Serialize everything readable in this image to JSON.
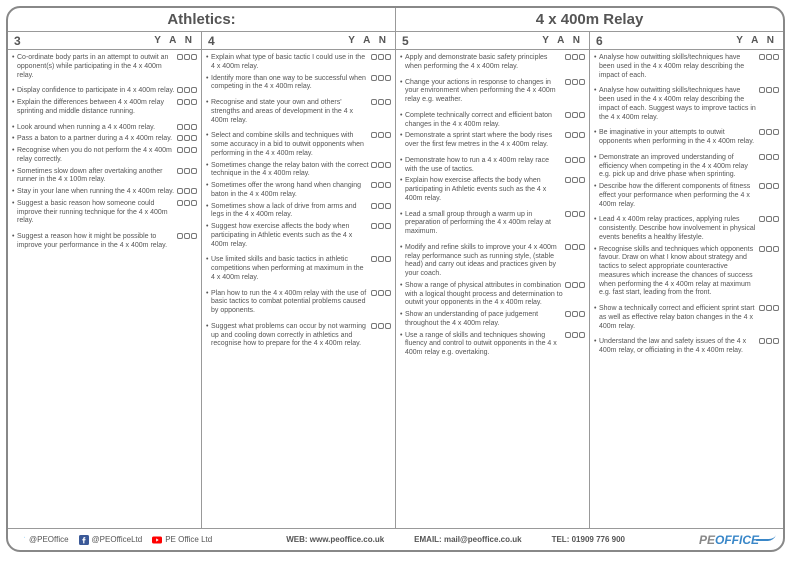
{
  "header": {
    "left": "Athletics:",
    "right": "4 x 400m Relay"
  },
  "yan_label": "Y A N",
  "columns": [
    {
      "level": "3",
      "groups": [
        [
          "Co-ordinate body parts in an attempt to outwit an opponent(s) while participating in the 4 x 400m relay."
        ],
        [
          "Display confidence to participate in 4 x 400m relay.",
          "Explain the differences between 4 x 400m relay sprinting and middle distance running."
        ],
        [
          "Look around when running a 4 x 400m relay.",
          "Pass a baton to a partner during a 4 x 400m relay.",
          "Recognise when you do not perform the 4 x 400m relay correctly.",
          "Sometimes slow down after overtaking another runner in the 4 x 100m relay.",
          "Stay in your lane when running the 4 x 400m relay.",
          "Suggest a basic reason how someone could improve their running technique for the 4 x 400m relay."
        ],
        [
          "Suggest a reason how it might be possible to improve your performance in the 4 x 400m relay."
        ]
      ]
    },
    {
      "level": "4",
      "groups": [
        [
          "Explain what type of basic tactic I could use in the 4 x 400m relay.",
          "Identify more than one way to be successful when competing in the 4 x 400m relay."
        ],
        [
          "Recognise and state your own and others' strengths and areas of development in the 4 x 400m relay."
        ],
        [
          "Select and combine skills and techniques with some accuracy in a bid to outwit opponents when performing in the 4 x 400m relay.",
          "Sometimes change the relay baton with the correct technique in the 4 x 400m relay.",
          "Sometimes offer the wrong hand when changing baton in the 4 x 400m relay.",
          "Sometimes show a lack of drive from arms and legs in the 4 x 400m relay.",
          "Suggest how exercise affects the body when participating in Athletic events such as the 4 x 400m relay."
        ],
        [
          "Use limited skills and basic tactics in athletic competitions when performing at maximum in the 4 x 400m relay."
        ],
        [
          "Plan how to run the 4 x 400m relay with the use of basic tactics to combat potential problems caused by opponents."
        ],
        [
          "Suggest what problems can occur by not warming up and cooling down correctly in athletics and recognise how to prepare for the 4 x 400m relay."
        ]
      ]
    },
    {
      "level": "5",
      "groups": [
        [
          "Apply and demonstrate basic safety principles when performing the 4 x 400m relay."
        ],
        [
          "Change your actions in response to changes in your environment when performing the 4 x 400m relay e.g. weather."
        ],
        [
          "Complete technically correct and efficient baton changes in the 4 x 400m relay.",
          "Demonstrate a sprint start where the body rises over the first few metres in the 4 x 400m relay."
        ],
        [
          "Demonstrate how to run a 4 x 400m relay race with the use of tactics.",
          "Explain how exercise affects the body when participating in Athletic events such as the 4 x 400m relay."
        ],
        [
          "Lead a small group through a warm up in preparation of performing the 4 x 400m relay at maximum."
        ],
        [
          "Modify and refine skills to improve your 4 x 400m relay performance such as running style, (stable head) and carry out ideas and practices given by your coach.",
          "Show a range of physical attributes in combination with a logical thought process and determination to outwit your opponents in the 4 x 400m relay.",
          "Show an understanding of pace judgement throughout the 4 x 400m relay.",
          "Use a range of skills and techniques showing fluency and control to outwit opponents in the 4 x 400m relay e.g. overtaking."
        ]
      ]
    },
    {
      "level": "6",
      "groups": [
        [
          "Analyse how outwitting skills/techniques have been used in the 4 x 400m relay describing the impact of each."
        ],
        [
          "Analyse how outwitting skills/techniques have been used in the 4 x 400m relay describing the impact of each. Suggest ways to improve tactics in the 4 x 400m relay."
        ],
        [
          "Be imaginative in your attempts to outwit opponents when performing in the 4 x 400m relay."
        ],
        [
          "Demonstrate an improved understanding of efficiency when competing in the 4 x 400m relay e.g. pick up and drive phase when sprinting.",
          "Describe how the different components of fitness effect your performance when performing the 4 x 400m relay."
        ],
        [
          "Lead 4 x 400m relay practices, applying rules consistently. Describe how involvement in physical events benefits a healthy lifestyle.",
          "Recognise skills and techniques which opponents favour. Draw on what I know about strategy and tactics to select appropriate counteractive measures which increase the chances of success when performing the 4 x 400m relay at maximum e.g. fast start, leading from the front."
        ],
        [
          "Show a technically correct and efficient sprint start as well as effective relay baton changes in the 4 x 400m relay."
        ],
        [
          "Understand the law and safety issues of the 4 x 400m relay, or officiating in the 4 x 400m relay."
        ]
      ]
    }
  ],
  "footer": {
    "twitter": "@PEOffice",
    "facebook": "@PEOfficeLtd",
    "youtube": "PE Office Ltd",
    "web_label": "WEB:",
    "web": "www.peoffice.co.uk",
    "email_label": "EMAIL:",
    "email": "mail@peoffice.co.uk",
    "tel_label": "TEL:",
    "tel": "01909 776 900",
    "logo_pe": "PE",
    "logo_office": "OFFICE"
  }
}
